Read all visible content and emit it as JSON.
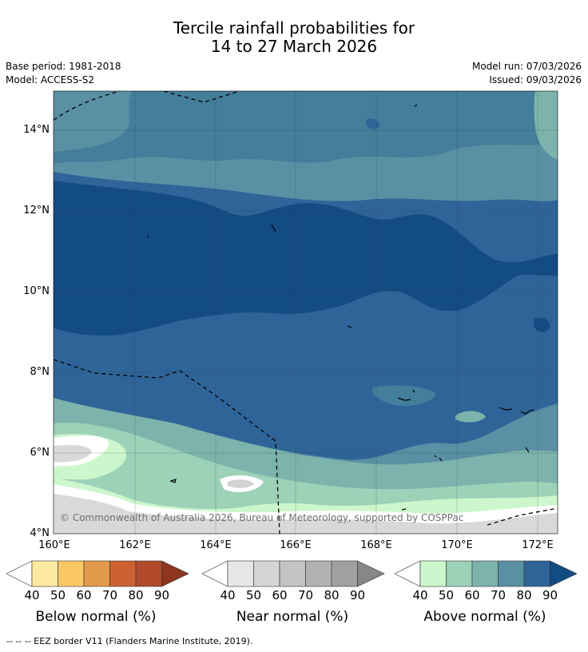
{
  "header": {
    "title_line1": "Tercile rainfall probabilities for",
    "title_line2": "14 to 27 March 2026",
    "base_period": "Base period: 1981-2018",
    "model": "Model: ACCESS-S2",
    "model_run": "Model run: 07/03/2026",
    "issued": "Issued: 09/03/2026"
  },
  "map": {
    "lat_labels": [
      "14°N",
      "12°N",
      "10°N",
      "8°N",
      "6°N",
      "4°N"
    ],
    "lon_labels": [
      "160°E",
      "162°E",
      "164°E",
      "166°E",
      "168°E",
      "170°E",
      "172°E"
    ],
    "copyright": "© Commonwealth of Australia 2026, Bureau of Meteorology, supported by COSPPac"
  },
  "colorbars": [
    {
      "label": "Below normal (%)",
      "ticks": [
        "40",
        "50",
        "60",
        "70",
        "80",
        "90"
      ],
      "colors": [
        "#fde9a0",
        "#fcc865",
        "#e3994a",
        "#cc6131",
        "#b04a2b",
        "#8e3520"
      ]
    },
    {
      "label": "Near normal (%)",
      "ticks": [
        "40",
        "50",
        "60",
        "70",
        "80",
        "90"
      ],
      "colors": [
        "#e6e6e6",
        "#d5d5d5",
        "#c4c4c4",
        "#b2b2b2",
        "#a0a0a0",
        "#878787"
      ]
    },
    {
      "label": "Above normal (%)",
      "ticks": [
        "40",
        "50",
        "60",
        "70",
        "80",
        "90"
      ],
      "colors": [
        "#ccf7cc",
        "#9dd1b8",
        "#7cb3ac",
        "#5990a3",
        "#2f6499",
        "#134b83"
      ]
    }
  ],
  "footnote": "--  --  -- EEZ border V11 (Flanders Marine Institute, 2019)."
}
